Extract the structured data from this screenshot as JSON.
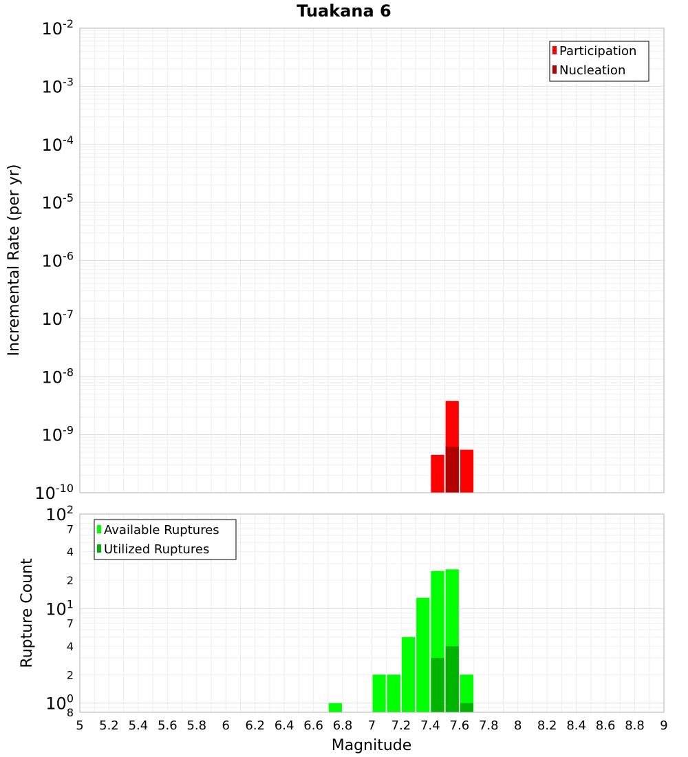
{
  "title": "Tuakana 6",
  "x_axis": {
    "label": "Magnitude",
    "range": [
      5,
      9
    ],
    "ticks": [
      "5",
      "5.2",
      "5.4",
      "5.6",
      "5.8",
      "6",
      "6.2",
      "6.4",
      "6.6",
      "6.8",
      "7",
      "7.2",
      "7.4",
      "7.6",
      "7.8",
      "8",
      "8.2",
      "8.4",
      "8.6",
      "8.8",
      "9"
    ]
  },
  "chart_data": [
    {
      "type": "bar",
      "ylabel": "Incremental Rate (per yr)",
      "y_scale": "log",
      "ylim": [
        1e-10,
        0.01
      ],
      "grid": true,
      "legend_position": "top-right",
      "y_tick_labels": [
        {
          "base": "10",
          "exp": "-2"
        },
        {
          "base": "10",
          "exp": "-3"
        },
        {
          "base": "10",
          "exp": "-4"
        },
        {
          "base": "10",
          "exp": "-5"
        },
        {
          "base": "10",
          "exp": "-6"
        },
        {
          "base": "10",
          "exp": "-7"
        },
        {
          "base": "10",
          "exp": "-8"
        },
        {
          "base": "10",
          "exp": "-9"
        },
        {
          "base": "10",
          "exp": "-10"
        }
      ],
      "series": [
        {
          "name": "Participation",
          "color": "#ff0000",
          "x": [
            7.45,
            7.55,
            7.65
          ],
          "values": [
            4.5e-10,
            3.8e-09,
            5.5e-10
          ]
        },
        {
          "name": "Nucleation",
          "color": "#b30000",
          "x": [
            7.55
          ],
          "values": [
            6.2e-10
          ]
        }
      ]
    },
    {
      "type": "bar",
      "ylabel": "Rupture Count",
      "y_scale": "log",
      "ylim": [
        0.8,
        100
      ],
      "grid": true,
      "legend_position": "top-left",
      "y_tick_labels": [
        {
          "base": "10",
          "exp": "2",
          "value": 100
        },
        {
          "base": "7",
          "value": 70
        },
        {
          "base": "4",
          "value": 40
        },
        {
          "base": "2",
          "value": 20
        },
        {
          "base": "10",
          "exp": "1",
          "value": 10
        },
        {
          "base": "7",
          "value": 7
        },
        {
          "base": "4",
          "value": 4
        },
        {
          "base": "2",
          "value": 2
        },
        {
          "base": "10",
          "exp": "0",
          "value": 1
        },
        {
          "base": "8",
          "value": 0.8
        }
      ],
      "series": [
        {
          "name": "Available Ruptures",
          "color": "#00ff00",
          "x": [
            6.75,
            7.05,
            7.15,
            7.25,
            7.35,
            7.45,
            7.55,
            7.65
          ],
          "values": [
            1,
            2,
            2,
            5,
            13,
            25,
            26,
            2
          ]
        },
        {
          "name": "Utilized Ruptures",
          "color": "#00b300",
          "x": [
            7.45,
            7.55,
            7.65
          ],
          "values": [
            3,
            4,
            1
          ]
        }
      ]
    }
  ]
}
